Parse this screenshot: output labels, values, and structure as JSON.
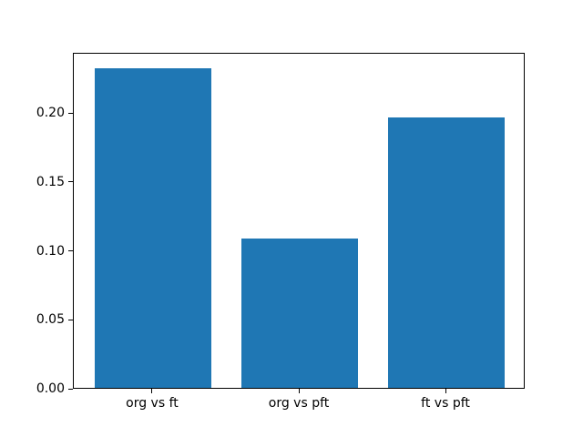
{
  "chart_data": {
    "type": "bar",
    "categories": [
      "org vs ft",
      "org vs pft",
      "ft vs pft"
    ],
    "values": [
      0.232,
      0.108,
      0.196
    ],
    "title": "",
    "xlabel": "",
    "ylabel": "",
    "ylim": [
      0,
      0.2436
    ],
    "xlim": [
      -0.54,
      2.54
    ],
    "yticks": [
      0.0,
      0.05,
      0.1,
      0.15,
      0.2
    ],
    "ytick_labels": [
      "0.00",
      "0.05",
      "0.10",
      "0.15",
      "0.20"
    ],
    "bar_width_units": 0.8,
    "bar_color": "#1f77b4",
    "axis_color": "#000000",
    "background_color": "#ffffff",
    "grid": false,
    "legend": null
  }
}
